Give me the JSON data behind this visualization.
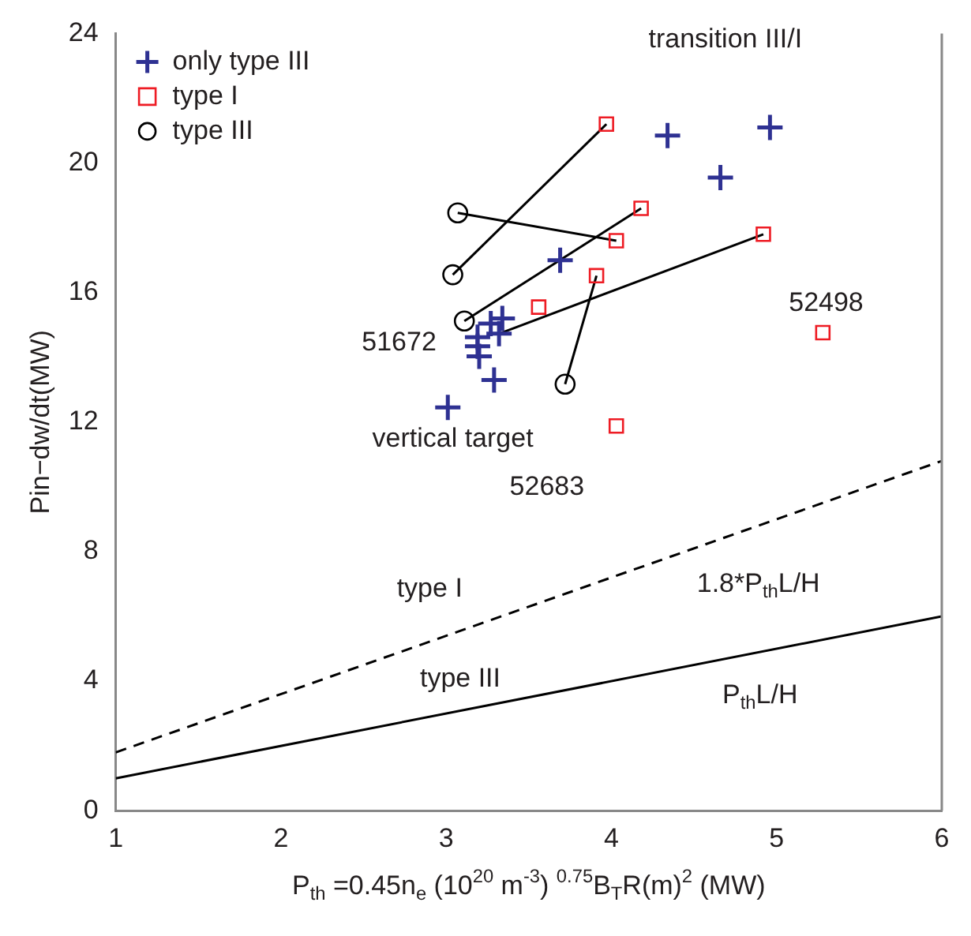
{
  "chart_data": {
    "type": "scatter",
    "xlabel": "P$_{th}$ =0.45n$_{e}$ (10$^{20}$ m$^{-3}$) $^{0.75}$B$_{T}$R(m)$^{2}$ (MW)",
    "ylabel": "Pin−dw/dt(MW)",
    "xlim": [
      1,
      6
    ],
    "xticks": [
      1,
      2,
      3,
      4,
      5,
      6
    ],
    "ylim": [
      0,
      24
    ],
    "yticks": [
      0,
      4,
      8,
      12,
      16,
      20,
      24
    ],
    "grid": false,
    "legend": "top left",
    "series": [
      {
        "type": "line",
        "color": "#000000",
        "marker": "none",
        "line_style": "solid",
        "x": [
          1,
          6
        ],
        "values": [
          1,
          6
        ]
      },
      {
        "type": "line",
        "color": "#000000",
        "marker": "none",
        "line_style": "dashed",
        "x": [
          1,
          6
        ],
        "values": [
          1.8,
          10.8
        ]
      },
      {
        "type": "line",
        "color": "#000000",
        "marker": "none",
        "line_style": "solid",
        "x": [
          3.04,
          3.97
        ],
        "values": [
          16.55,
          21.2
        ]
      },
      {
        "type": "line",
        "color": "#000000",
        "marker": "none",
        "line_style": "solid",
        "x": [
          3.07,
          4.03
        ],
        "values": [
          18.46,
          17.6
        ]
      },
      {
        "type": "line",
        "color": "#000000",
        "marker": "none",
        "line_style": "solid",
        "x": [
          3.11,
          4.18
        ],
        "values": [
          15.12,
          18.6
        ]
      },
      {
        "type": "line",
        "color": "#000000",
        "marker": "none",
        "line_style": "solid",
        "x": [
          3.72,
          3.91
        ],
        "values": [
          13.17,
          16.52
        ]
      },
      {
        "type": "line",
        "color": "#000000",
        "marker": "none",
        "line_style": "solid",
        "x": [
          3.32,
          4.92
        ],
        "values": [
          14.73,
          17.8
        ]
      },
      {
        "name": "only type III",
        "color": "#2e3192",
        "marker": "cross",
        "x": [
          4.34,
          4.96,
          4.66,
          3.69,
          3.34,
          3.27,
          3.32,
          3.19,
          3.19,
          3.2,
          3.29,
          3.01
        ],
        "values": [
          20.85,
          21.1,
          19.55,
          17.0,
          15.2,
          15.04,
          14.73,
          14.62,
          14.34,
          14.03,
          13.3,
          12.45
        ]
      },
      {
        "name": "type I",
        "color": "#ee1c24",
        "marker": "square",
        "x": [
          3.97,
          4.18,
          4.03,
          4.92,
          3.91,
          3.56,
          4.03,
          5.28
        ],
        "values": [
          21.2,
          18.6,
          17.6,
          17.8,
          16.52,
          15.55,
          11.88,
          14.76
        ]
      },
      {
        "name": "type III",
        "color": "#000000",
        "marker": "circle",
        "x": [
          3.07,
          3.04,
          3.11,
          3.72
        ],
        "values": [
          18.46,
          16.55,
          15.12,
          13.17
        ]
      }
    ],
    "annotations": [
      "transition III/I",
      "51672",
      "52498",
      "52683",
      "vertical target",
      "type I",
      "type III",
      "1.8*P$_{th}$L/H",
      "P$_{th}$L/H"
    ]
  }
}
